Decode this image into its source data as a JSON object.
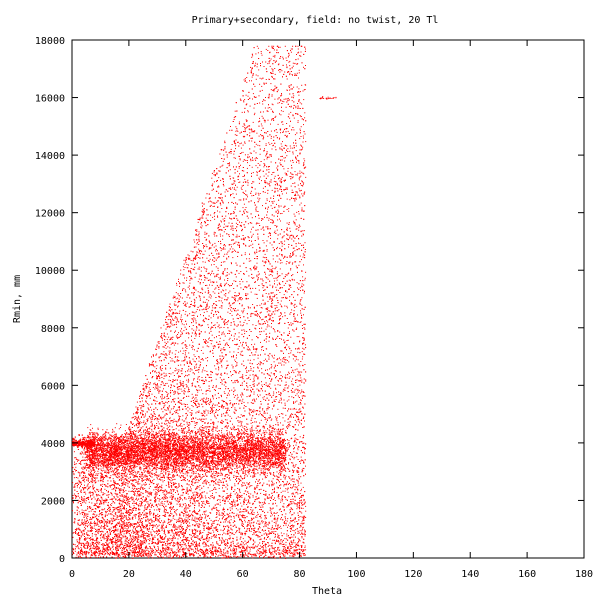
{
  "chart_data": {
    "type": "scatter",
    "title": "Primary+secondary, field: no twist, 20 Tl",
    "xlabel": "Theta",
    "ylabel": "Rmin, mm",
    "xlim": [
      0,
      180
    ],
    "ylim": [
      0,
      18000
    ],
    "x_ticks": [
      "0",
      "20",
      "40",
      "60",
      "80",
      "100",
      "120",
      "140",
      "160",
      "180"
    ],
    "y_ticks": [
      "0",
      "2000",
      "4000",
      "6000",
      "8000",
      "10000",
      "12000",
      "14000",
      "16000",
      "18000"
    ],
    "grid": false,
    "legend": "none",
    "point_color": "#ff0000",
    "series": [
      {
        "values_description_only_in_script": true,
        "x": [
          2,
          5,
          8,
          12,
          16,
          20,
          25,
          30,
          35,
          40,
          45,
          50,
          55,
          60,
          65,
          70,
          75,
          80,
          82,
          88,
          90,
          92
        ],
        "y": [
          4000,
          3950,
          3900,
          3850,
          3800,
          3700,
          3600,
          3500,
          3500,
          3600,
          3700,
          3800,
          3900,
          3800,
          3700,
          3600,
          3500,
          3400,
          3000,
          16000,
          16000,
          16000
        ]
      }
    ]
  }
}
